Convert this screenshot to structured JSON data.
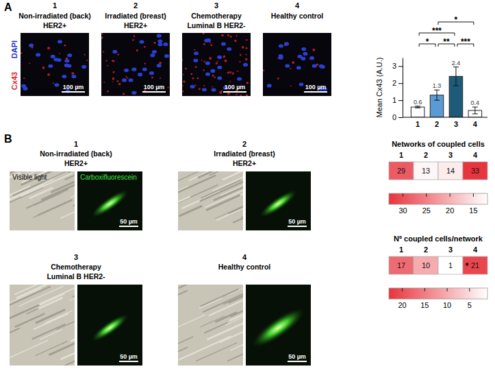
{
  "figure": {
    "panel_letters": [
      "A",
      "B"
    ],
    "microscopy_a": {
      "channels": [
        "DAPI",
        "Cx43"
      ],
      "scale_bar": "100 µm",
      "images": [
        {
          "number": "1",
          "title": "Non-irradiated (back)",
          "subtitle": "HER2+"
        },
        {
          "number": "2",
          "title": "Irradiated (breast)",
          "subtitle": "HER2+"
        },
        {
          "number": "3",
          "title": "Chemotherapy",
          "subtitle": "Luminal B HER2-"
        },
        {
          "number": "4",
          "title": "Healthy control"
        }
      ]
    },
    "microscopy_b": {
      "channels": [
        "Visible light",
        "Carboxifluorescein"
      ],
      "scale_bar": "50 µm",
      "images": [
        {
          "number": "1",
          "title": "Non-irradiated (back)",
          "subtitle": "HER2+"
        },
        {
          "number": "2",
          "title": "Irradiated (breast)",
          "subtitle": "HER2+"
        },
        {
          "number": "3",
          "title": "Chemotherapy",
          "subtitle": "Luminal B HER2-"
        },
        {
          "number": "4",
          "title": "Healthy control"
        }
      ]
    }
  },
  "chart_data": [
    {
      "type": "bar",
      "y_label": "Mean Cx43 (A.U.)",
      "categories": [
        "1",
        "2",
        "3",
        "4"
      ],
      "values": [
        0.6,
        1.3,
        2.4,
        0.4
      ],
      "errors": [
        0.05,
        0.3,
        0.55,
        0.2
      ],
      "colors": [
        "#ffffff",
        "#5b9bd5",
        "#1d5b79",
        "#ffffff"
      ],
      "ylim": [
        0,
        3.5
      ],
      "yticks": [
        0,
        1,
        2,
        3
      ],
      "data_labels": true,
      "annotations": [
        {
          "text": "*",
          "from": "1",
          "to": "2"
        },
        {
          "text": "**",
          "from": "2",
          "to": "3"
        },
        {
          "text": "***",
          "from": "3",
          "to": "4"
        },
        {
          "text": "***",
          "from": "1",
          "to": "3"
        },
        {
          "text": "*",
          "from": "2",
          "to": "4"
        }
      ]
    },
    {
      "type": "heatmap",
      "title": "Networks of coupled cells",
      "categories": [
        "1",
        "2",
        "3",
        "4"
      ],
      "values": [
        29,
        13,
        14,
        33
      ],
      "color": "#e8343c",
      "data_labels": true,
      "colorbar": {
        "range": [
          33,
          12
        ],
        "ticks": [
          30,
          25,
          20,
          15
        ]
      }
    },
    {
      "type": "heatmap",
      "title": "Nº coupled cells/network",
      "categories": [
        "1",
        "2",
        "3",
        "4"
      ],
      "values": [
        17,
        10,
        1,
        21
      ],
      "color": "#e8343c",
      "data_labels": true,
      "colorbar": {
        "range": [
          23,
          1
        ],
        "ticks": [
          20,
          15,
          10,
          5
        ]
      },
      "annotations": [
        {
          "text": "*",
          "category": "4"
        }
      ]
    }
  ]
}
